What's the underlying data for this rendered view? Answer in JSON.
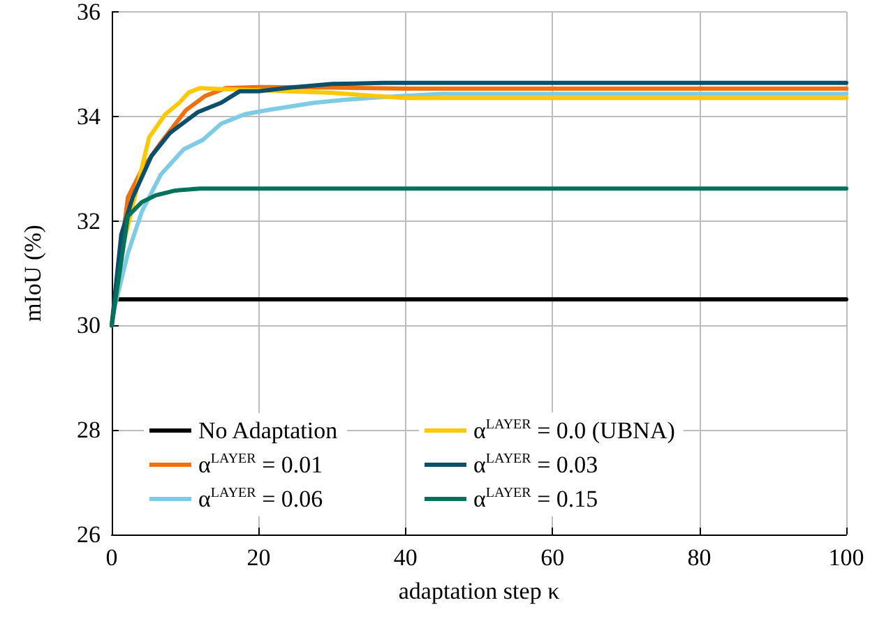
{
  "chart_data": {
    "type": "line",
    "xlabel": "adaptation step κ",
    "ylabel": "mIoU (%)",
    "xlim": [
      0,
      100
    ],
    "xticks": [
      0,
      20,
      40,
      60,
      80,
      100
    ],
    "ylim": [
      26,
      36
    ],
    "yticks": [
      26,
      28,
      30,
      32,
      34,
      36
    ],
    "grid": true,
    "legend": "bottom",
    "marker": "none",
    "line_style": "solid",
    "series": [
      {
        "name": "No Adaptation",
        "color": "#000000",
        "x": [
          1,
          100
        ],
        "values": [
          30.5,
          30.5
        ]
      },
      {
        "name": "α$^{LAYER}$ = 0.01",
        "color": "#f07010",
        "x": [
          0,
          2.2,
          4.1,
          6.7,
          10.1,
          12.7,
          15.5,
          20,
          30,
          40,
          100
        ],
        "values": [
          30.0,
          32.45,
          32.98,
          33.5,
          34.12,
          34.39,
          34.54,
          34.56,
          34.55,
          34.53,
          34.53
        ]
      },
      {
        "name": "α$^{LAYER}$ = 0.06",
        "color": "#7ecbe6",
        "x": [
          0,
          0.3,
          2.2,
          4.1,
          6.7,
          9.8,
          12.4,
          14.9,
          18.1,
          21.2,
          27.6,
          32,
          37,
          45,
          100
        ],
        "values": [
          30.0,
          30.3,
          31.38,
          32.18,
          32.89,
          33.37,
          33.55,
          33.86,
          34.04,
          34.12,
          34.26,
          34.32,
          34.37,
          34.43,
          34.43
        ]
      },
      {
        "name": "α$^{LAYER}$ = 0.0 (UBNA)",
        "color": "#ffc800",
        "x": [
          0,
          1.6,
          5.1,
          7.3,
          9.2,
          10.5,
          12,
          14.9,
          20,
          30,
          40,
          100
        ],
        "values": [
          30.0,
          31.56,
          33.6,
          34.04,
          34.26,
          34.46,
          34.54,
          34.52,
          34.5,
          34.45,
          34.35,
          34.35
        ]
      },
      {
        "name": "α$^{LAYER}$ = 0.03",
        "color": "#0b4f6c",
        "x": [
          0,
          1.3,
          2.85,
          5.4,
          7.9,
          11.7,
          14.9,
          17.4,
          20,
          24.3,
          30,
          37,
          100
        ],
        "values": [
          30.0,
          31.74,
          32.45,
          33.24,
          33.68,
          34.08,
          34.26,
          34.48,
          34.48,
          34.55,
          34.62,
          34.64,
          34.64
        ]
      },
      {
        "name": "α$^{LAYER}$ = 0.15",
        "color": "#00735a",
        "x": [
          0,
          2.2,
          4.1,
          6,
          8.6,
          12,
          100
        ],
        "values": [
          30.0,
          32.09,
          32.36,
          32.49,
          32.58,
          32.62,
          32.62
        ]
      }
    ]
  }
}
